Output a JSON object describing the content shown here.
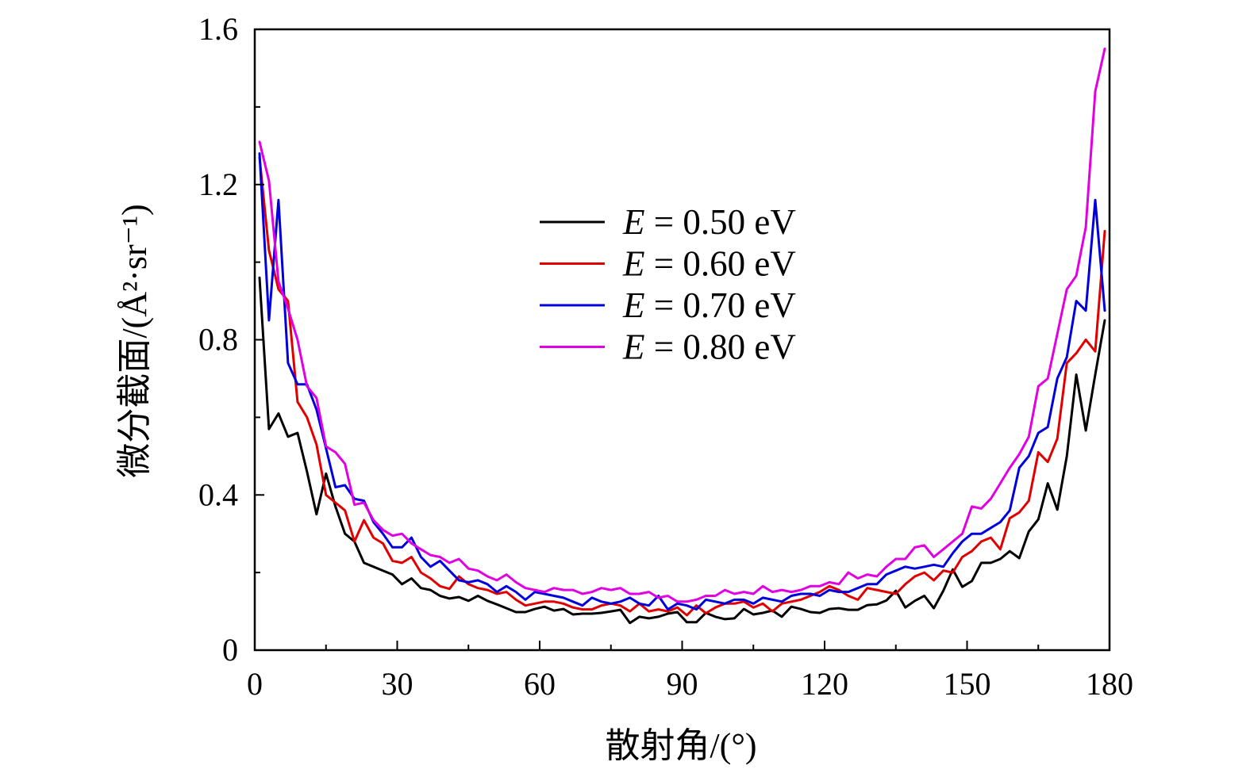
{
  "chart_data": {
    "type": "line",
    "title": "",
    "xlabel": "散射角/(°)",
    "ylabel": "微分截面/(Å²·sr⁻¹)",
    "xlim": [
      0,
      180
    ],
    "ylim": [
      0,
      1.6
    ],
    "xticks": [
      0,
      30,
      60,
      90,
      120,
      150,
      180
    ],
    "yticks": [
      0,
      0.4,
      0.8,
      1.2,
      1.6
    ],
    "grid": false,
    "legend_position": "upper center",
    "x": [
      1,
      3,
      5,
      7,
      9,
      11,
      13,
      15,
      17,
      19,
      21,
      23,
      25,
      27,
      29,
      31,
      33,
      35,
      37,
      39,
      41,
      43,
      45,
      47,
      49,
      51,
      53,
      55,
      57,
      59,
      61,
      63,
      65,
      67,
      69,
      71,
      73,
      75,
      77,
      79,
      81,
      83,
      85,
      87,
      89,
      91,
      93,
      95,
      97,
      99,
      101,
      103,
      105,
      107,
      109,
      111,
      113,
      115,
      117,
      119,
      121,
      123,
      125,
      127,
      129,
      131,
      133,
      135,
      137,
      139,
      141,
      143,
      145,
      147,
      149,
      151,
      153,
      155,
      157,
      159,
      161,
      163,
      165,
      167,
      169,
      171,
      173,
      175,
      177,
      179
    ],
    "series": [
      {
        "name": "E = 0.50 eV",
        "color": "#000000",
        "values": [
          0.96,
          0.57,
          0.61,
          0.55,
          0.56,
          0.46,
          0.35,
          0.455,
          0.37,
          0.3,
          0.28,
          0.225,
          0.215,
          0.205,
          0.195,
          0.17,
          0.185,
          0.16,
          0.155,
          0.14,
          0.133,
          0.137,
          0.127,
          0.14,
          0.127,
          0.118,
          0.108,
          0.098,
          0.098,
          0.106,
          0.112,
          0.102,
          0.106,
          0.092,
          0.094,
          0.094,
          0.096,
          0.1,
          0.104,
          0.07,
          0.086,
          0.082,
          0.086,
          0.094,
          0.098,
          0.072,
          0.072,
          0.096,
          0.086,
          0.08,
          0.082,
          0.106,
          0.092,
          0.096,
          0.102,
          0.086,
          0.112,
          0.106,
          0.098,
          0.096,
          0.106,
          0.108,
          0.104,
          0.104,
          0.116,
          0.118,
          0.128,
          0.153,
          0.11,
          0.127,
          0.14,
          0.108,
          0.153,
          0.208,
          0.163,
          0.178,
          0.225,
          0.225,
          0.235,
          0.255,
          0.237,
          0.306,
          0.337,
          0.43,
          0.362,
          0.5,
          0.71,
          0.566,
          0.71,
          0.85
        ]
      },
      {
        "name": "E = 0.60 eV",
        "color": "#e00000",
        "values": [
          1.27,
          1.03,
          0.93,
          0.9,
          0.64,
          0.6,
          0.53,
          0.4,
          0.38,
          0.36,
          0.28,
          0.335,
          0.29,
          0.275,
          0.23,
          0.225,
          0.24,
          0.2,
          0.185,
          0.165,
          0.158,
          0.19,
          0.17,
          0.16,
          0.155,
          0.145,
          0.15,
          0.13,
          0.115,
          0.12,
          0.125,
          0.125,
          0.12,
          0.11,
          0.105,
          0.105,
          0.115,
          0.12,
          0.115,
          0.1,
          0.12,
          0.1,
          0.105,
          0.1,
          0.11,
          0.09,
          0.115,
          0.095,
          0.11,
          0.12,
          0.12,
          0.125,
          0.11,
          0.12,
          0.1,
          0.12,
          0.125,
          0.13,
          0.14,
          0.15,
          0.165,
          0.155,
          0.14,
          0.13,
          0.16,
          0.155,
          0.15,
          0.145,
          0.17,
          0.19,
          0.2,
          0.18,
          0.205,
          0.2,
          0.24,
          0.255,
          0.28,
          0.29,
          0.26,
          0.34,
          0.355,
          0.385,
          0.51,
          0.485,
          0.545,
          0.74,
          0.765,
          0.8,
          0.77,
          1.08
        ]
      },
      {
        "name": "E = 0.70 eV",
        "color": "#0000dd",
        "values": [
          1.28,
          0.85,
          1.16,
          0.74,
          0.685,
          0.685,
          0.62,
          0.52,
          0.42,
          0.425,
          0.39,
          0.385,
          0.33,
          0.3,
          0.265,
          0.265,
          0.29,
          0.24,
          0.215,
          0.23,
          0.205,
          0.18,
          0.175,
          0.18,
          0.17,
          0.15,
          0.165,
          0.15,
          0.13,
          0.15,
          0.145,
          0.14,
          0.135,
          0.125,
          0.115,
          0.135,
          0.125,
          0.12,
          0.125,
          0.135,
          0.12,
          0.115,
          0.14,
          0.105,
          0.12,
          0.115,
          0.105,
          0.13,
          0.125,
          0.12,
          0.13,
          0.13,
          0.12,
          0.135,
          0.13,
          0.125,
          0.14,
          0.145,
          0.145,
          0.14,
          0.155,
          0.15,
          0.15,
          0.16,
          0.17,
          0.17,
          0.195,
          0.205,
          0.215,
          0.21,
          0.215,
          0.22,
          0.215,
          0.25,
          0.28,
          0.3,
          0.3,
          0.315,
          0.33,
          0.36,
          0.47,
          0.5,
          0.56,
          0.575,
          0.7,
          0.755,
          0.9,
          0.875,
          1.16,
          0.875
        ]
      },
      {
        "name": "E = 0.80 eV",
        "color": "#e100e1",
        "values": [
          1.31,
          1.21,
          0.95,
          0.88,
          0.8,
          0.68,
          0.65,
          0.525,
          0.51,
          0.48,
          0.375,
          0.38,
          0.335,
          0.31,
          0.295,
          0.3,
          0.275,
          0.26,
          0.245,
          0.24,
          0.225,
          0.235,
          0.21,
          0.205,
          0.19,
          0.18,
          0.195,
          0.175,
          0.16,
          0.155,
          0.15,
          0.16,
          0.155,
          0.155,
          0.145,
          0.15,
          0.16,
          0.155,
          0.16,
          0.145,
          0.145,
          0.15,
          0.135,
          0.14,
          0.125,
          0.125,
          0.13,
          0.14,
          0.14,
          0.155,
          0.145,
          0.15,
          0.145,
          0.165,
          0.15,
          0.155,
          0.15,
          0.155,
          0.165,
          0.165,
          0.175,
          0.17,
          0.2,
          0.185,
          0.195,
          0.19,
          0.215,
          0.235,
          0.235,
          0.265,
          0.27,
          0.24,
          0.26,
          0.28,
          0.3,
          0.37,
          0.365,
          0.39,
          0.43,
          0.47,
          0.505,
          0.55,
          0.68,
          0.7,
          0.815,
          0.93,
          0.965,
          1.09,
          1.44,
          1.55
        ]
      }
    ]
  }
}
